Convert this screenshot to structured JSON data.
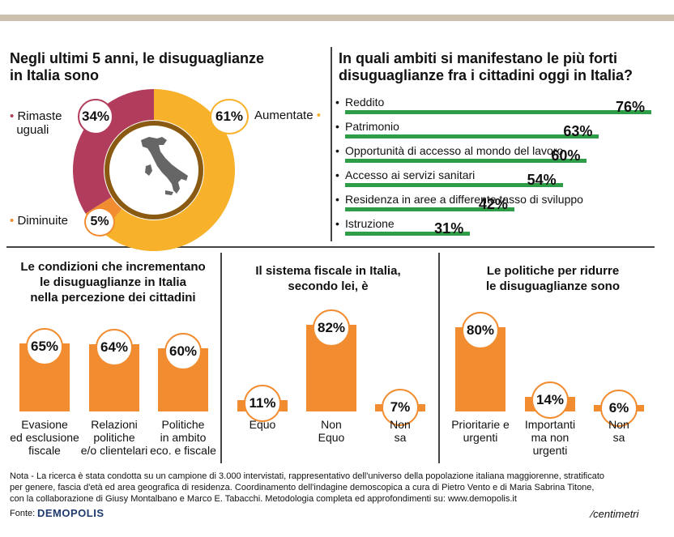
{
  "panel1": {
    "title_line1": "Negli ultimi 5 anni, le disuguaglianze",
    "title_line2": "in Italia sono",
    "rimaste_label_1": "Rimaste",
    "rimaste_label_2": "uguali",
    "aumentate_label": "Aumentate",
    "diminuite_label": "Diminuite",
    "colors": {
      "aumentate": "#f7b12a",
      "rimaste": "#b23c5b",
      "diminuite": "#f28c30"
    }
  },
  "panel2": {
    "title_line1": "In quali ambiti si manifestano le più forti",
    "title_line2": "disuguaglianze fra i cittadini oggi in Italia?"
  },
  "panel3": {
    "title_line1": "Le condizioni che incrementano",
    "title_line2": "le disuguaglianze in Italia",
    "title_line3": "nella percezione dei cittadini"
  },
  "panel4": {
    "title_line1": "Il sistema fiscale in Italia,",
    "title_line2": "secondo lei, è"
  },
  "panel5": {
    "title_line1": "Le politiche per ridurre",
    "title_line2": "le disuguaglianze sono"
  },
  "chart_data": [
    {
      "type": "pie",
      "categories": [
        "Aumentate",
        "Rimaste uguali",
        "Diminuite"
      ],
      "values": [
        61,
        34,
        5
      ],
      "labels": [
        "61%",
        "34%",
        "5%"
      ]
    },
    {
      "type": "bar",
      "orientation": "horizontal",
      "categories": [
        "Reddito",
        "Patrimonio",
        "Opportunità di accesso al mondo del lavoro",
        "Accesso ai servizi sanitari",
        "Residenza in aree a differente tasso di sviluppo",
        "Istruzione"
      ],
      "values": [
        76,
        63,
        60,
        54,
        42,
        31
      ],
      "labels": [
        "76%",
        "63%",
        "60%",
        "54%",
        "42%",
        "31%"
      ]
    },
    {
      "type": "bar",
      "categories": [
        "Evasione ed esclusione fiscale",
        "Relazioni politiche e/o clientelari",
        "Politiche in ambito eco. e fiscale"
      ],
      "category_lines": [
        [
          "Evasione",
          "ed esclusione",
          "fiscale"
        ],
        [
          "Relazioni",
          "politiche",
          "e/o clientelari"
        ],
        [
          "Politiche",
          "in ambito",
          "eco. e fiscale"
        ]
      ],
      "values": [
        65,
        64,
        60
      ],
      "labels": [
        "65%",
        "64%",
        "60%"
      ]
    },
    {
      "type": "bar",
      "categories": [
        "Equo",
        "Non Equo",
        "Non sa"
      ],
      "category_lines": [
        [
          "Equo"
        ],
        [
          "Non",
          "Equo"
        ],
        [
          "Non",
          "sa"
        ]
      ],
      "values": [
        11,
        82,
        7
      ],
      "labels": [
        "11%",
        "82%",
        "7%"
      ]
    },
    {
      "type": "bar",
      "categories": [
        "Prioritarie e urgenti",
        "Importanti ma non urgenti",
        "Non sa"
      ],
      "category_lines": [
        [
          "Prioritarie e",
          "urgenti"
        ],
        [
          "Importanti",
          "ma non",
          "urgenti"
        ],
        [
          "Non",
          "sa"
        ]
      ],
      "values": [
        80,
        14,
        6
      ],
      "labels": [
        "80%",
        "14%",
        "6%"
      ]
    }
  ],
  "footer": {
    "note_line1": "Nota - La ricerca è stata condotta su un campione di 3.000 intervistati, rappresentativo dell'universo della popolazione italiana maggiorenne, stratificato",
    "note_line2": "per genere, fascia d'età ed area geografica di residenza. Coordinamento dell'indagine demoscopica a cura di Pietro Vento e di Maria Sabrina Titone,",
    "note_line3": "con la collaborazione di Giusy Montalbano e Marco E. Tabacchi. Metodologia completa ed approfondimenti su: www.demopolis.it",
    "fonte_label": "Fonte:",
    "demopolis_logo": "DEMOPOLIS",
    "centimetri_logo": "centimetri"
  },
  "colors": {
    "orange_bar": "#f28c30",
    "green_bar": "#2e9d48",
    "divider": "#444444"
  }
}
